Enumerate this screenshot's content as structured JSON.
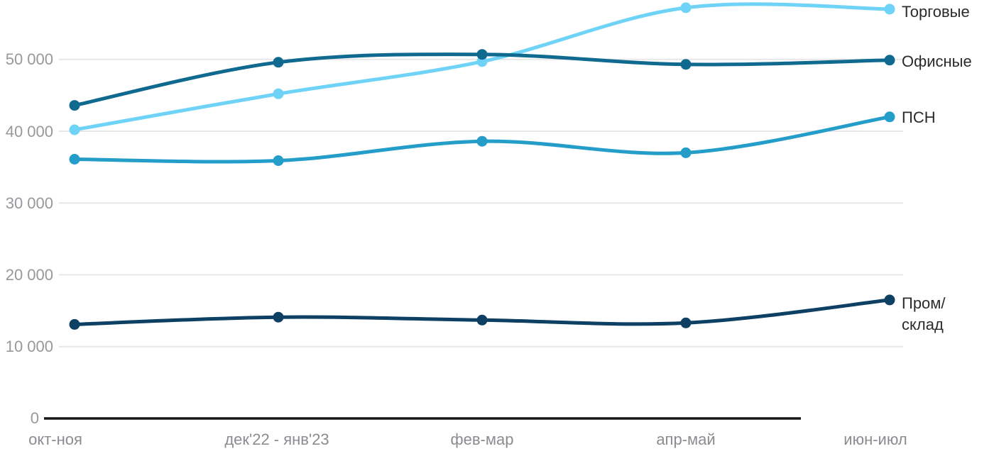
{
  "chart_data": {
    "type": "line",
    "categories": [
      "окт-ноя",
      "дек'22 - янв'23",
      "фев-мар",
      "апр-май",
      "июн-июл"
    ],
    "series": [
      {
        "id": "torgovye",
        "name": "Торговые",
        "color": "#6ed3f7",
        "values": [
          40200,
          45200,
          49700,
          57200,
          57000
        ],
        "label_lines": [
          "Торговые"
        ]
      },
      {
        "id": "ofisnye",
        "name": "Офисные",
        "color": "#106a90",
        "values": [
          43600,
          49600,
          50700,
          49300,
          49900
        ],
        "label_lines": [
          "Офисные"
        ]
      },
      {
        "id": "psn",
        "name": "ПСН",
        "color": "#249dc9",
        "values": [
          36100,
          35900,
          38600,
          37000,
          42000
        ],
        "label_lines": [
          "ПСН"
        ]
      },
      {
        "id": "prom-sklad",
        "name": "Пром/склад",
        "color": "#0e4063",
        "values": [
          13100,
          14100,
          13700,
          13300,
          16500
        ],
        "label_lines": [
          "Пром/",
          "склад"
        ]
      }
    ],
    "yticks": [
      0,
      10000,
      20000,
      30000,
      40000,
      50000
    ],
    "ytick_labels": [
      "0",
      "10 000",
      "20 000",
      "30 000",
      "40 000",
      "50 000"
    ],
    "ylim": [
      0,
      58000
    ],
    "grid": true,
    "legend_position": "right-of-line-end",
    "colors": {
      "gridline": "#e7e7e7",
      "zero_axis": "#161616",
      "axis_text": "#97989c",
      "legend_text": "#2b2b2b",
      "background": "#ffffff"
    }
  }
}
